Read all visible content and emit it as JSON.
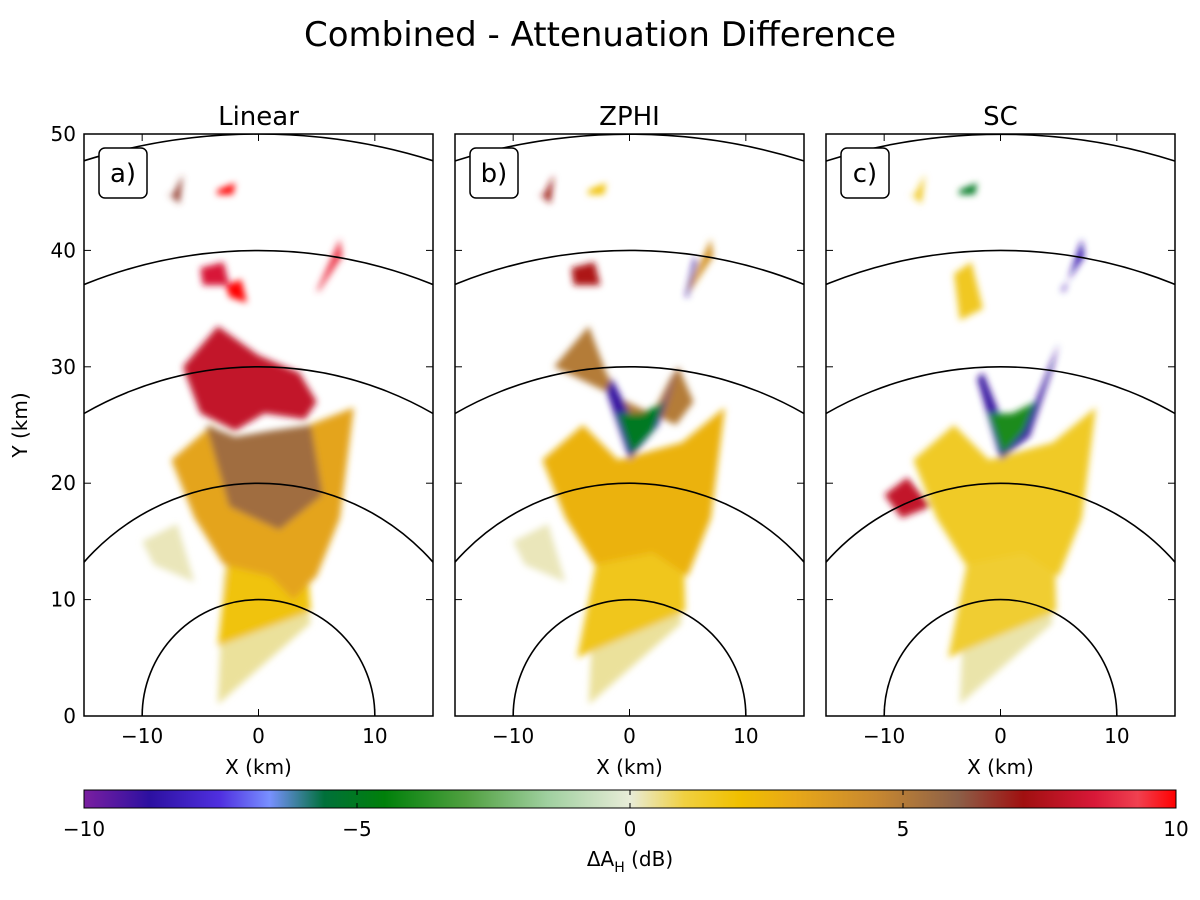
{
  "figure": {
    "title": "Combined - Attenuation Difference"
  },
  "chart_data": [
    {
      "type": "heatmap",
      "panel_label": "a)",
      "title": "Linear",
      "xlabel": "X (km)",
      "ylabel": "Y (km)",
      "xlim": [
        -15,
        15
      ],
      "ylim": [
        0,
        50
      ],
      "xticks": [
        -10,
        0,
        10
      ],
      "yticks": [
        0,
        10,
        20,
        30,
        40,
        50
      ],
      "range_rings_km": [
        10,
        20,
        30,
        40,
        50
      ],
      "regions": [
        {
          "x": [
            -3.5,
            4.5,
            2.8,
            1.5,
            -1.5,
            -3.0
          ],
          "y": [
            1.0,
            8.0,
            15.0,
            20.0,
            20.0,
            12.0
          ],
          "value": 0.4
        },
        {
          "x": [
            -3.5,
            4.5,
            3.8,
            1.0,
            -2.5
          ],
          "y": [
            6.0,
            9.0,
            18.0,
            20.0,
            15.0
          ],
          "value": 1.8
        },
        {
          "x": [
            -7.5,
            -4.0,
            -2.0,
            3.0,
            8.2,
            7.0,
            5.0,
            3.0,
            1.0,
            -3.0,
            -5.5
          ],
          "y": [
            22.0,
            25.0,
            22.0,
            24.5,
            26.5,
            17.0,
            12.0,
            10.0,
            12.0,
            13.0,
            17.0
          ],
          "value": 3.2
        },
        {
          "x": [
            -4.5,
            -2.0,
            1.0,
            4.5,
            5.5,
            1.8,
            -2.5
          ],
          "y": [
            25.0,
            24.0,
            24.5,
            25.0,
            19.0,
            16.0,
            18.0
          ],
          "value": 5.5
        },
        {
          "x": [
            -10.0,
            -7.0,
            -5.5,
            -9.0
          ],
          "y": [
            15.0,
            16.5,
            11.5,
            13.0
          ],
          "value": 0.2
        },
        {
          "x": [
            -6.5,
            -3.5,
            0.0,
            3.5,
            5.0,
            4.0,
            0.5,
            -2.0,
            -5.0
          ],
          "y": [
            30.0,
            33.5,
            31.0,
            29.5,
            27.0,
            25.5,
            26.0,
            24.5,
            26.0
          ],
          "value": 8.0
        },
        {
          "x": [
            -5.0,
            -3.0,
            -2.5,
            -4.8
          ],
          "y": [
            38.5,
            39.0,
            37.0,
            37.0
          ],
          "value": 8.5
        },
        {
          "x": [
            5.0,
            7.0,
            7.2,
            5.2
          ],
          "y": [
            36.5,
            41.0,
            39.5,
            36.5
          ],
          "value": 9.2
        },
        {
          "x": [
            -2.5,
            -1.0,
            -1.5,
            -2.8
          ],
          "y": [
            36.0,
            35.5,
            37.5,
            37.0
          ],
          "value": 10.0
        },
        {
          "x": [
            -7.5,
            -6.5,
            -6.8,
            -7.8
          ],
          "y": [
            44.5,
            46.5,
            44.0,
            45.0
          ],
          "value": 6.5
        },
        {
          "x": [
            -3.5,
            -2.0,
            -2.2,
            -3.6
          ],
          "y": [
            45.2,
            45.8,
            44.8,
            44.8
          ],
          "value": 10.0
        }
      ]
    },
    {
      "type": "heatmap",
      "panel_label": "b)",
      "title": "ZPHI",
      "xlabel": "X (km)",
      "ylabel": "",
      "xlim": [
        -15,
        15
      ],
      "ylim": [
        0,
        50
      ],
      "xticks": [
        -10,
        0,
        10
      ],
      "yticks": [
        0,
        10,
        20,
        30,
        40,
        50
      ],
      "range_rings_km": [
        10,
        20,
        30,
        40,
        50
      ],
      "regions": [
        {
          "x": [
            -3.5,
            4.5,
            2.8,
            1.5,
            -1.5,
            -3.0
          ],
          "y": [
            1.0,
            8.0,
            15.0,
            20.0,
            20.0,
            12.0
          ],
          "value": 0.4
        },
        {
          "x": [
            -4.5,
            4.8,
            4.5,
            2.0,
            -2.5
          ],
          "y": [
            5.0,
            9.0,
            20.0,
            21.0,
            15.0
          ],
          "value": 1.6
        },
        {
          "x": [
            -7.5,
            -4.0,
            -1.0,
            4.5,
            8.2,
            7.0,
            5.0,
            2.0,
            -3.0,
            -5.5
          ],
          "y": [
            22.0,
            25.0,
            22.0,
            23.5,
            26.5,
            17.0,
            12.0,
            14.0,
            13.0,
            17.0
          ],
          "value": 2.6
        },
        {
          "x": [
            -10.0,
            -7.0,
            -5.5,
            -9.0
          ],
          "y": [
            15.0,
            16.5,
            11.5,
            13.0
          ],
          "value": 0.2
        },
        {
          "x": [
            -6.5,
            -3.5,
            -2.0,
            1.0,
            3.5,
            4.2,
            5.5,
            4.0
          ],
          "y": [
            30.0,
            33.5,
            29.5,
            24.0,
            29.0,
            30.0,
            27.0,
            25.0
          ],
          "value": 5.0
        },
        {
          "x": [
            -2.0,
            0.0,
            2.5,
            4.2,
            3.0,
            0.5,
            -1.5
          ],
          "y": [
            28.0,
            22.0,
            25.0,
            30.0,
            27.0,
            25.0,
            29.0
          ],
          "value": -9.0
        },
        {
          "x": [
            -1.0,
            0.2,
            2.0,
            3.0,
            1.0
          ],
          "y": [
            26.0,
            22.5,
            24.5,
            27.0,
            26.0
          ],
          "value": -5.0
        },
        {
          "x": [
            -5.0,
            -3.0,
            -2.5,
            -4.8
          ],
          "y": [
            38.5,
            39.0,
            37.0,
            37.0
          ],
          "value": 7.5
        },
        {
          "x": [
            5.0,
            7.0,
            7.2,
            5.2
          ],
          "y": [
            36.5,
            41.0,
            39.5,
            36.5
          ],
          "value": 4.0
        },
        {
          "x": [
            4.8,
            5.6,
            5.8,
            5.0
          ],
          "y": [
            36.0,
            39.5,
            39.0,
            36.0
          ],
          "value": -9.0
        },
        {
          "x": [
            -7.5,
            -6.5,
            -6.8,
            -7.8
          ],
          "y": [
            44.5,
            46.5,
            44.0,
            45.0
          ],
          "value": 7.0
        },
        {
          "x": [
            -3.5,
            -2.0,
            -2.2,
            -3.6
          ],
          "y": [
            45.2,
            45.8,
            44.8,
            44.8
          ],
          "value": 2.0
        }
      ]
    },
    {
      "type": "heatmap",
      "panel_label": "c)",
      "title": "SC",
      "xlabel": "X (km)",
      "ylabel": "",
      "xlim": [
        -15,
        15
      ],
      "ylim": [
        0,
        50
      ],
      "xticks": [
        -10,
        0,
        10
      ],
      "yticks": [
        0,
        10,
        20,
        30,
        40,
        50
      ],
      "range_rings_km": [
        10,
        20,
        30,
        40,
        50
      ],
      "regions": [
        {
          "x": [
            -3.5,
            4.5,
            2.8,
            1.5,
            -1.5,
            -3.0
          ],
          "y": [
            1.0,
            8.0,
            15.0,
            20.0,
            20.0,
            12.0
          ],
          "value": 0.3
        },
        {
          "x": [
            -4.5,
            4.8,
            4.5,
            2.0,
            -2.5
          ],
          "y": [
            5.0,
            9.0,
            20.0,
            21.0,
            15.0
          ],
          "value": 1.2
        },
        {
          "x": [
            -7.5,
            -4.0,
            -1.0,
            4.5,
            8.2,
            7.0,
            5.0,
            2.0,
            -3.0,
            -5.5
          ],
          "y": [
            22.0,
            25.0,
            22.0,
            23.5,
            26.5,
            17.0,
            12.0,
            14.0,
            13.0,
            17.0
          ],
          "value": 1.4
        },
        {
          "x": [
            -2.0,
            0.0,
            2.5,
            4.5,
            5.0,
            3.0,
            0.5,
            -1.5
          ],
          "y": [
            29.0,
            22.0,
            24.0,
            30.0,
            32.0,
            27.0,
            24.5,
            29.5
          ],
          "value": -9.0
        },
        {
          "x": [
            -1.0,
            0.2,
            2.0,
            3.0,
            1.0
          ],
          "y": [
            26.0,
            22.5,
            24.5,
            27.0,
            26.0
          ],
          "value": -4.0
        },
        {
          "x": [
            -10.0,
            -8.0,
            -6.0,
            -8.5
          ],
          "y": [
            19.0,
            20.5,
            18.0,
            17.0
          ],
          "value": 8.0
        },
        {
          "x": [
            -4.0,
            -2.5,
            -1.5,
            -3.5
          ],
          "y": [
            38.0,
            39.0,
            35.0,
            34.0
          ],
          "value": 1.5
        },
        {
          "x": [
            5.5,
            7.0,
            7.2,
            5.2
          ],
          "y": [
            36.5,
            41.0,
            39.5,
            36.5
          ],
          "value": -8.5
        },
        {
          "x": [
            -7.5,
            -6.5,
            -6.8,
            -7.8
          ],
          "y": [
            44.5,
            46.5,
            44.0,
            45.0
          ],
          "value": 1.5
        },
        {
          "x": [
            -3.5,
            -2.0,
            -2.2,
            -3.6
          ],
          "y": [
            45.2,
            45.8,
            44.8,
            44.8
          ],
          "value": -5.0
        }
      ]
    }
  ],
  "colorbar": {
    "label": "ΔA_H (dB)",
    "label_main": "ΔA",
    "label_sub": "H",
    "label_unit": " (dB)",
    "range": [
      -10,
      10
    ],
    "ticks": [
      "−10",
      "−5",
      "0",
      "5",
      "10"
    ],
    "tick_values": [
      -10,
      -5,
      0,
      5,
      10
    ],
    "stops": [
      {
        "v": -10,
        "color": "#7a1fa0"
      },
      {
        "v": -8.8,
        "color": "#2c10a0"
      },
      {
        "v": -7.5,
        "color": "#5030e0"
      },
      {
        "v": -6.6,
        "color": "#7890ff"
      },
      {
        "v": -5.6,
        "color": "#00703a"
      },
      {
        "v": -4.5,
        "color": "#00800a"
      },
      {
        "v": -3.0,
        "color": "#50a040"
      },
      {
        "v": -1.5,
        "color": "#a0d0a0"
      },
      {
        "v": 0,
        "color": "#e8ecd8"
      },
      {
        "v": 1.0,
        "color": "#f0d040"
      },
      {
        "v": 2.0,
        "color": "#f0c000"
      },
      {
        "v": 3.0,
        "color": "#e8a818"
      },
      {
        "v": 4.5,
        "color": "#c88830"
      },
      {
        "v": 6.0,
        "color": "#8c6048"
      },
      {
        "v": 7.2,
        "color": "#a01010"
      },
      {
        "v": 8.5,
        "color": "#d81838"
      },
      {
        "v": 9.3,
        "color": "#f04050"
      },
      {
        "v": 10,
        "color": "#ff0000"
      }
    ]
  }
}
